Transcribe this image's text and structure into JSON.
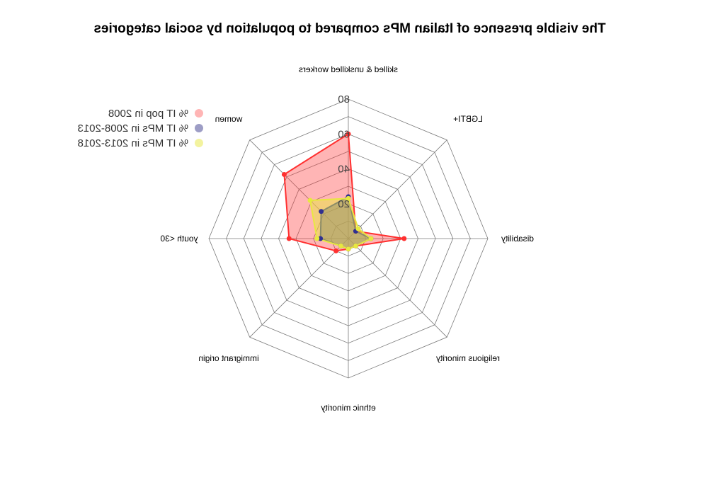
{
  "chart_data": {
    "type": "radar",
    "title": "The visible presence of Italian MPs compared to population by social categories",
    "mirrored": true,
    "rlim": [
      0,
      80
    ],
    "ticks": [
      20,
      40,
      60,
      80
    ],
    "axes": [
      "skilled & unskilled workers",
      "women",
      "youth <30",
      "immigrant origin",
      "ethnic minority",
      "religious minority",
      "disability",
      "LGBTI+"
    ],
    "series": [
      {
        "name": "% IT pop in 2008",
        "color": "#ff3030",
        "fill": "rgba(255,60,60,0.38)",
        "values": [
          60,
          52,
          34,
          10,
          6,
          6,
          32,
          6
        ]
      },
      {
        "name": "% IT MPs in 2008-2013",
        "color": "#303090",
        "fill": "rgba(60,60,140,0.5)",
        "values": [
          24,
          22,
          16,
          6,
          6,
          6,
          13,
          6
        ]
      },
      {
        "name": "% IT MPs in 2013-2018",
        "color": "#e8e840",
        "fill": "rgba(232,232,64,0.5)",
        "values": [
          23,
          31,
          18,
          6,
          6,
          6,
          13,
          8
        ]
      }
    ],
    "legend_position": "top-left"
  }
}
